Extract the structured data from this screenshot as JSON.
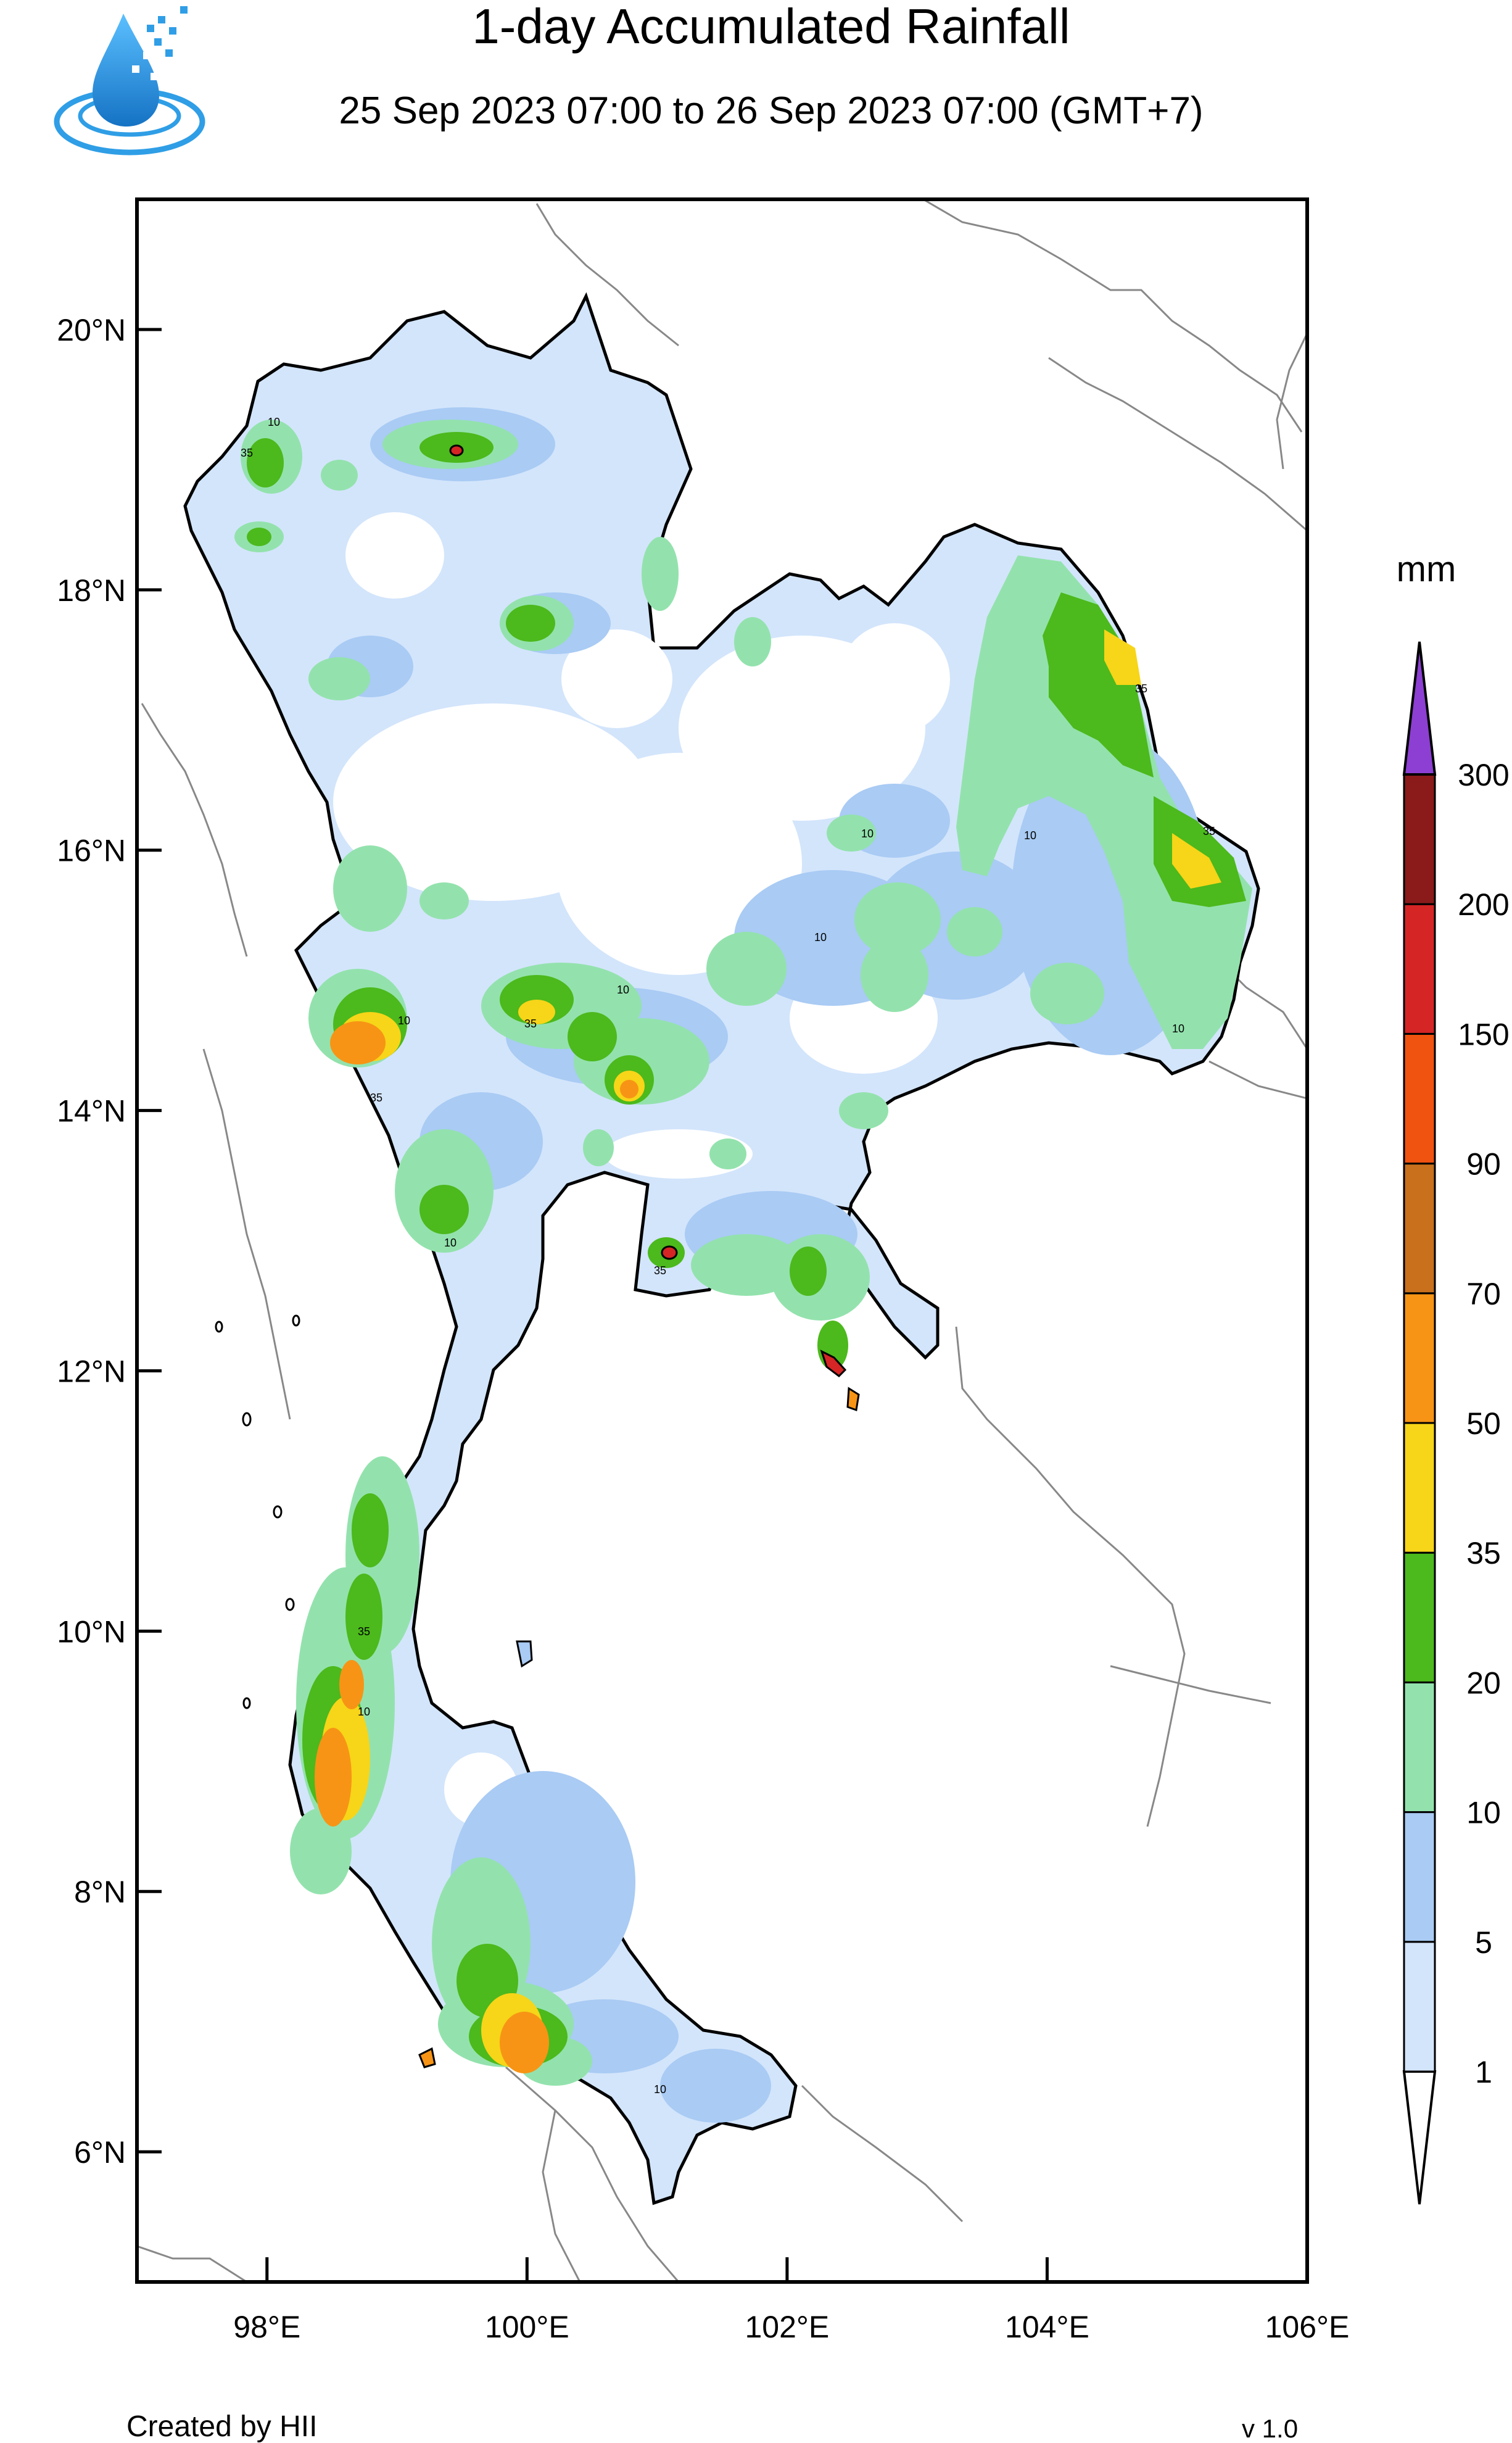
{
  "header": {
    "title": "1-day Accumulated Rainfall",
    "subtitle": "25 Sep 2023 07:00 to 26 Sep 2023 07:00 (GMT+7)"
  },
  "logo": {
    "icon": "water-drop-icon",
    "color": "#1f8fd6"
  },
  "map": {
    "lat_ticks": [
      {
        "value": 20,
        "label": "20°N"
      },
      {
        "value": 18,
        "label": "18°N"
      },
      {
        "value": 16,
        "label": "16°N"
      },
      {
        "value": 14,
        "label": "14°N"
      },
      {
        "value": 12,
        "label": "12°N"
      },
      {
        "value": 10,
        "label": "10°N"
      },
      {
        "value": 8,
        "label": "8°N"
      },
      {
        "value": 6,
        "label": "6°N"
      }
    ],
    "lon_ticks": [
      {
        "value": 98,
        "label": "98°E"
      },
      {
        "value": 100,
        "label": "100°E"
      },
      {
        "value": 102,
        "label": "102°E"
      },
      {
        "value": 104,
        "label": "104°E"
      },
      {
        "value": 106,
        "label": "106°E"
      }
    ],
    "lon_range": [
      97,
      106
    ],
    "lat_range": [
      5,
      21
    ],
    "contour_labels": [
      "10",
      "35"
    ]
  },
  "legend": {
    "unit": "mm",
    "levels": [
      "1",
      "5",
      "10",
      "20",
      "35",
      "50",
      "70",
      "90",
      "150",
      "200",
      "300"
    ],
    "colors": [
      "#ffffff",
      "#d3e5fb",
      "#a9cbf4",
      "#93e2ad",
      "#4cb91c",
      "#f7d518",
      "#f79415",
      "#c8701c",
      "#f0520f",
      "#d52525",
      "#8b1a1a",
      "#8c3fd2"
    ]
  },
  "footer": {
    "credit": "Created by HII",
    "version": "v 1.0"
  }
}
